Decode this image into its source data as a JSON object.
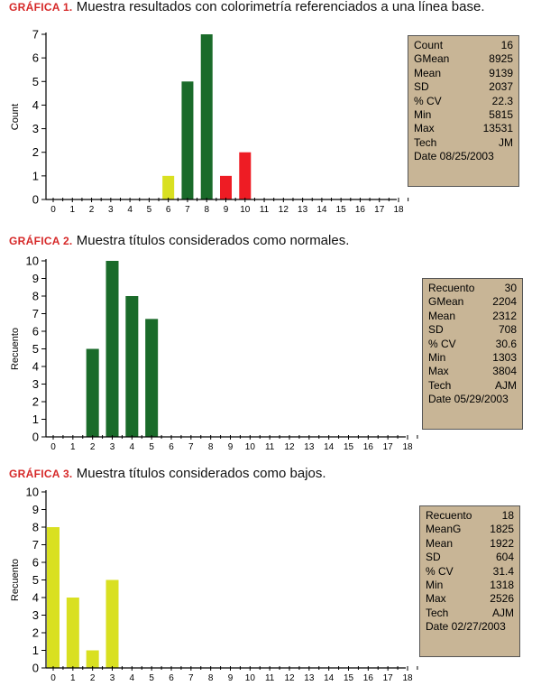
{
  "charts": [
    {
      "caption_label": "GRÁFICA 1.",
      "caption_text": "Muestra resultados con colorimetría referenciados a una línea base.",
      "stats": [
        {
          "k": "Count",
          "v": "16"
        },
        {
          "k": "GMean",
          "v": "8925"
        },
        {
          "k": "Mean",
          "v": "9139"
        },
        {
          "k": "SD",
          "v": "2037"
        },
        {
          "k": "% CV",
          "v": "22.3"
        },
        {
          "k": "Min",
          "v": "5815"
        },
        {
          "k": "Max",
          "v": "13531"
        },
        {
          "k": "Tech",
          "v": "JM"
        },
        {
          "k": "Date",
          "v": "08/25/2003"
        }
      ]
    },
    {
      "caption_label": "GRÁFICA 2.",
      "caption_text": "Muestra títulos considerados como normales.",
      "stats": [
        {
          "k": "Recuento",
          "v": "30"
        },
        {
          "k": "GMean",
          "v": "2204"
        },
        {
          "k": "Mean",
          "v": "2312"
        },
        {
          "k": "SD",
          "v": "708"
        },
        {
          "k": "% CV",
          "v": "30.6"
        },
        {
          "k": "Min",
          "v": "1303"
        },
        {
          "k": "Max",
          "v": "3804"
        },
        {
          "k": "Tech",
          "v": "AJM"
        },
        {
          "k": "Date",
          "v": "05/29/2003"
        }
      ]
    },
    {
      "caption_label": "GRÁFICA 3.",
      "caption_text": "Muestra títulos considerados como bajos.",
      "stats": [
        {
          "k": "Recuento",
          "v": "18"
        },
        {
          "k": "MeanG",
          "v": "1825"
        },
        {
          "k": "Mean",
          "v": "1922"
        },
        {
          "k": "SD",
          "v": "604"
        },
        {
          "k": "% CV",
          "v": "31.4"
        },
        {
          "k": "Min",
          "v": "1318"
        },
        {
          "k": "Max",
          "v": "2526"
        },
        {
          "k": "Tech",
          "v": "AJM"
        },
        {
          "k": "Date",
          "v": "02/27/2003"
        }
      ]
    }
  ],
  "chart_data": [
    {
      "type": "bar",
      "title": "",
      "xlabel": "",
      "ylabel": "Count",
      "x": [
        0,
        1,
        2,
        3,
        4,
        5,
        6,
        7,
        8,
        9,
        10,
        11,
        12,
        13,
        14,
        15,
        16,
        17,
        18
      ],
      "ylim": [
        0,
        7
      ],
      "yticks": [
        0,
        1,
        2,
        3,
        4,
        5,
        6,
        7
      ],
      "grid": false,
      "bars": [
        {
          "x": 6,
          "value": 1,
          "color": "#d9e021"
        },
        {
          "x": 7,
          "value": 5,
          "color": "#1a6b2a"
        },
        {
          "x": 8,
          "value": 7,
          "color": "#1a6b2a"
        },
        {
          "x": 9,
          "value": 1,
          "color": "#ee1c24"
        },
        {
          "x": 10,
          "value": 2,
          "color": "#ee1c24"
        }
      ]
    },
    {
      "type": "bar",
      "title": "",
      "xlabel": "",
      "ylabel": "Recuento",
      "x": [
        0,
        1,
        2,
        3,
        4,
        5,
        6,
        7,
        8,
        9,
        10,
        11,
        12,
        13,
        14,
        15,
        16,
        17,
        18
      ],
      "ylim": [
        0,
        10
      ],
      "yticks": [
        0,
        1,
        2,
        3,
        4,
        5,
        6,
        7,
        8,
        9,
        10
      ],
      "grid": false,
      "bars": [
        {
          "x": 2,
          "value": 5,
          "color": "#1a6b2a"
        },
        {
          "x": 3,
          "value": 10,
          "color": "#1a6b2a"
        },
        {
          "x": 4,
          "value": 8,
          "color": "#1a6b2a"
        },
        {
          "x": 5,
          "value": 6.7,
          "color": "#1a6b2a"
        }
      ]
    },
    {
      "type": "bar",
      "title": "",
      "xlabel": "",
      "ylabel": "Recuento",
      "x": [
        0,
        1,
        2,
        3,
        4,
        5,
        6,
        7,
        8,
        9,
        10,
        11,
        12,
        13,
        14,
        15,
        16,
        17,
        18
      ],
      "ylim": [
        0,
        10
      ],
      "yticks": [
        0,
        1,
        2,
        3,
        4,
        5,
        6,
        7,
        8,
        9,
        10
      ],
      "grid": false,
      "bars": [
        {
          "x": 0,
          "value": 8,
          "color": "#d9e021"
        },
        {
          "x": 1,
          "value": 4,
          "color": "#d9e021"
        },
        {
          "x": 2,
          "value": 1,
          "color": "#d9e021"
        },
        {
          "x": 3,
          "value": 5,
          "color": "#d9e021"
        }
      ]
    }
  ]
}
